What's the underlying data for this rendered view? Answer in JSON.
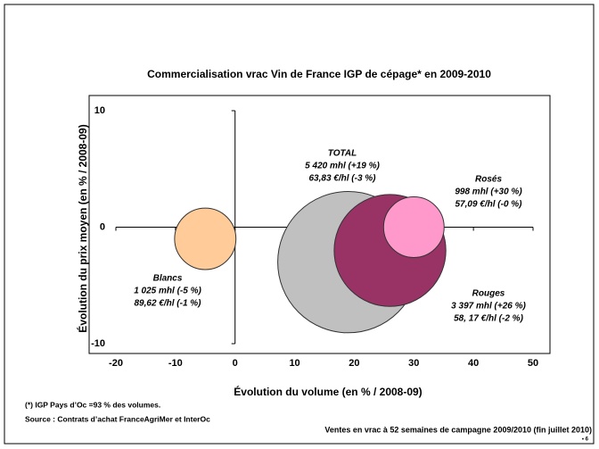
{
  "chart_data": {
    "type": "bubble",
    "title": "Commercialisation vrac Vin de France IGP  de cépage* en  2009-2010",
    "x_label": "Évolution du volume (en % / 2008-09)",
    "y_label": "Évolution du prix moyen (en % / 2008-09)",
    "xlim": [
      -20,
      50
    ],
    "xticks": [
      -20,
      -10,
      0,
      10,
      20,
      30,
      40,
      50
    ],
    "ylim": [
      -10,
      10
    ],
    "yticks": [
      -10,
      0,
      10
    ],
    "series": [
      {
        "name": "TOTAL",
        "color": "#c0c0c0",
        "x": [
          19
        ],
        "y": [
          -3
        ],
        "size": [
          5420
        ],
        "labels": [
          "5 420 mhl (+19 %)",
          "63,83 €/hl (-3 %)"
        ]
      },
      {
        "name": "Rouges",
        "color": "#993366",
        "x": [
          26
        ],
        "y": [
          -2
        ],
        "size": [
          3397
        ],
        "labels": [
          "3 397 mhl (+26 %)",
          "58, 17 €/hl (-2 %)"
        ]
      },
      {
        "name": "Rosés",
        "color": "#ff99cc",
        "x": [
          30
        ],
        "y": [
          0
        ],
        "size": [
          998
        ],
        "labels": [
          "998 mhl (+30 %)",
          "57,09 €/hl (-0 %)"
        ]
      },
      {
        "name": "Blancs",
        "color": "#ffcc99",
        "x": [
          -5
        ],
        "y": [
          -1
        ],
        "size": [
          1025
        ],
        "labels": [
          "1 025 mhl (-5 %)",
          "89,62 €/hl (-1 %)"
        ]
      }
    ]
  },
  "footnote": "(*) IGP Pays d’Oc =93 % des volumes.",
  "source": "Source : Contrats d’achat FranceAgriMer et InterOc",
  "caption": "Ventes en vrac à 52 semaines de campagne 2009/2010 (fin juillet 2010)",
  "page_number": "• 6"
}
